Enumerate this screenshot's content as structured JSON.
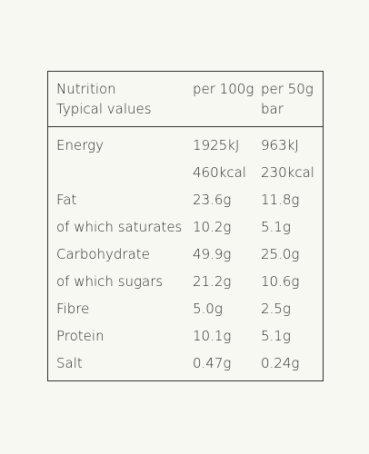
{
  "header": {
    "nutrient": [
      "Nutrition",
      "Typical values"
    ],
    "per_100g": [
      "per 100g"
    ],
    "per_50g": [
      "per 50g",
      "bar"
    ]
  },
  "rows": [
    {
      "label": "Energy",
      "per_100g": [
        "1925kJ",
        "460kcal"
      ],
      "per_50g": [
        "963kJ",
        "230kcal"
      ]
    },
    {
      "label": "Fat",
      "per_100g": [
        "23.6g"
      ],
      "per_50g": [
        "11.8g"
      ]
    },
    {
      "label": "of which saturates",
      "per_100g": [
        "10.2g"
      ],
      "per_50g": [
        "5.1g"
      ]
    },
    {
      "label": "Carbohydrate",
      "per_100g": [
        "49.9g"
      ],
      "per_50g": [
        "25.0g"
      ]
    },
    {
      "label": "of which sugars",
      "per_100g": [
        "21.2g"
      ],
      "per_50g": [
        "10.6g"
      ]
    },
    {
      "label": "Fibre",
      "per_100g": [
        "5.0g"
      ],
      "per_50g": [
        "2.5g"
      ]
    },
    {
      "label": "Protein",
      "per_100g": [
        "10.1g"
      ],
      "per_50g": [
        "5.1g"
      ]
    },
    {
      "label": "Salt",
      "per_100g": [
        "0.47g"
      ],
      "per_50g": [
        "0.24g"
      ]
    }
  ]
}
